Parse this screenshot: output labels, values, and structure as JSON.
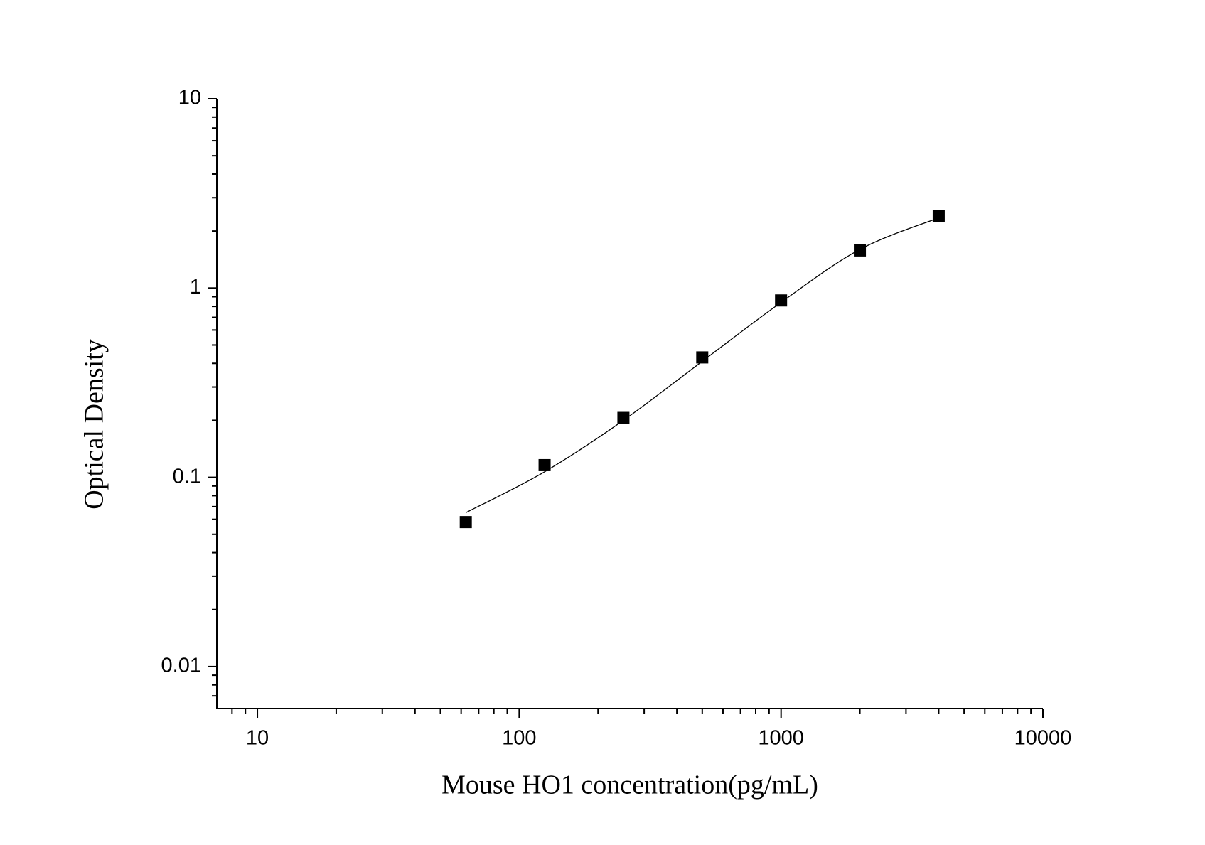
{
  "chart_data": {
    "type": "scatter",
    "x_label": "Mouse HO1 concentration(pg/mL)",
    "y_label": "Optical Density",
    "xscale": "log",
    "yscale": "log",
    "xlim": [
      7,
      10000
    ],
    "ylim": [
      0.006,
      10
    ],
    "xticks": [
      10,
      100,
      1000,
      10000
    ],
    "yticks": [
      0.01,
      0.1,
      1,
      10
    ],
    "xminorticks": [
      8,
      9,
      20,
      30,
      40,
      50,
      60,
      70,
      80,
      90,
      200,
      300,
      400,
      500,
      600,
      700,
      800,
      900,
      2000,
      3000,
      4000,
      5000,
      6000,
      7000,
      8000,
      9000
    ],
    "yminorticks": [
      0.007,
      0.008,
      0.009,
      0.02,
      0.03,
      0.04,
      0.05,
      0.06,
      0.07,
      0.08,
      0.09,
      0.2,
      0.3,
      0.4,
      0.5,
      0.6,
      0.7,
      0.8,
      0.9,
      2,
      3,
      4,
      5,
      6,
      7,
      8,
      9
    ],
    "series": [
      {
        "kind": "points",
        "color": "#000000",
        "x": [
          62.5,
          125,
          250,
          500,
          1000,
          2000,
          4000
        ],
        "values": [
          0.058,
          0.116,
          0.206,
          0.43,
          0.86,
          1.58,
          2.4
        ]
      },
      {
        "kind": "curve",
        "color": "#000000",
        "x": [
          62.5,
          125,
          250,
          500,
          1000,
          2000,
          4000
        ],
        "values": [
          0.065,
          0.107,
          0.2,
          0.41,
          0.84,
          1.6,
          2.35
        ]
      }
    ]
  }
}
